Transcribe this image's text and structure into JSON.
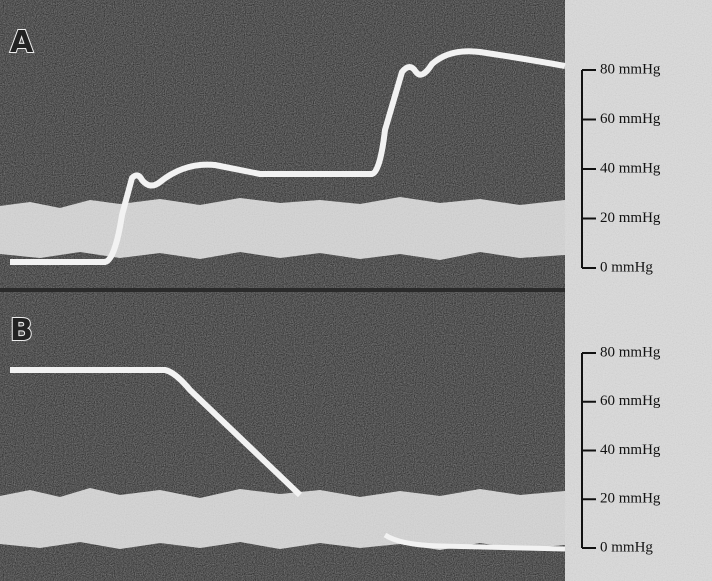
{
  "panels": [
    {
      "label": "A",
      "scale": [
        "80 mmHg",
        "60 mmHg",
        "40 mmHg",
        "20 mmHg",
        "0 mmHg"
      ]
    },
    {
      "label": "B",
      "scale": [
        "80 mmHg",
        "60 mmHg",
        "40 mmHg",
        "20 mmHg",
        "0 mmHg"
      ]
    }
  ]
}
